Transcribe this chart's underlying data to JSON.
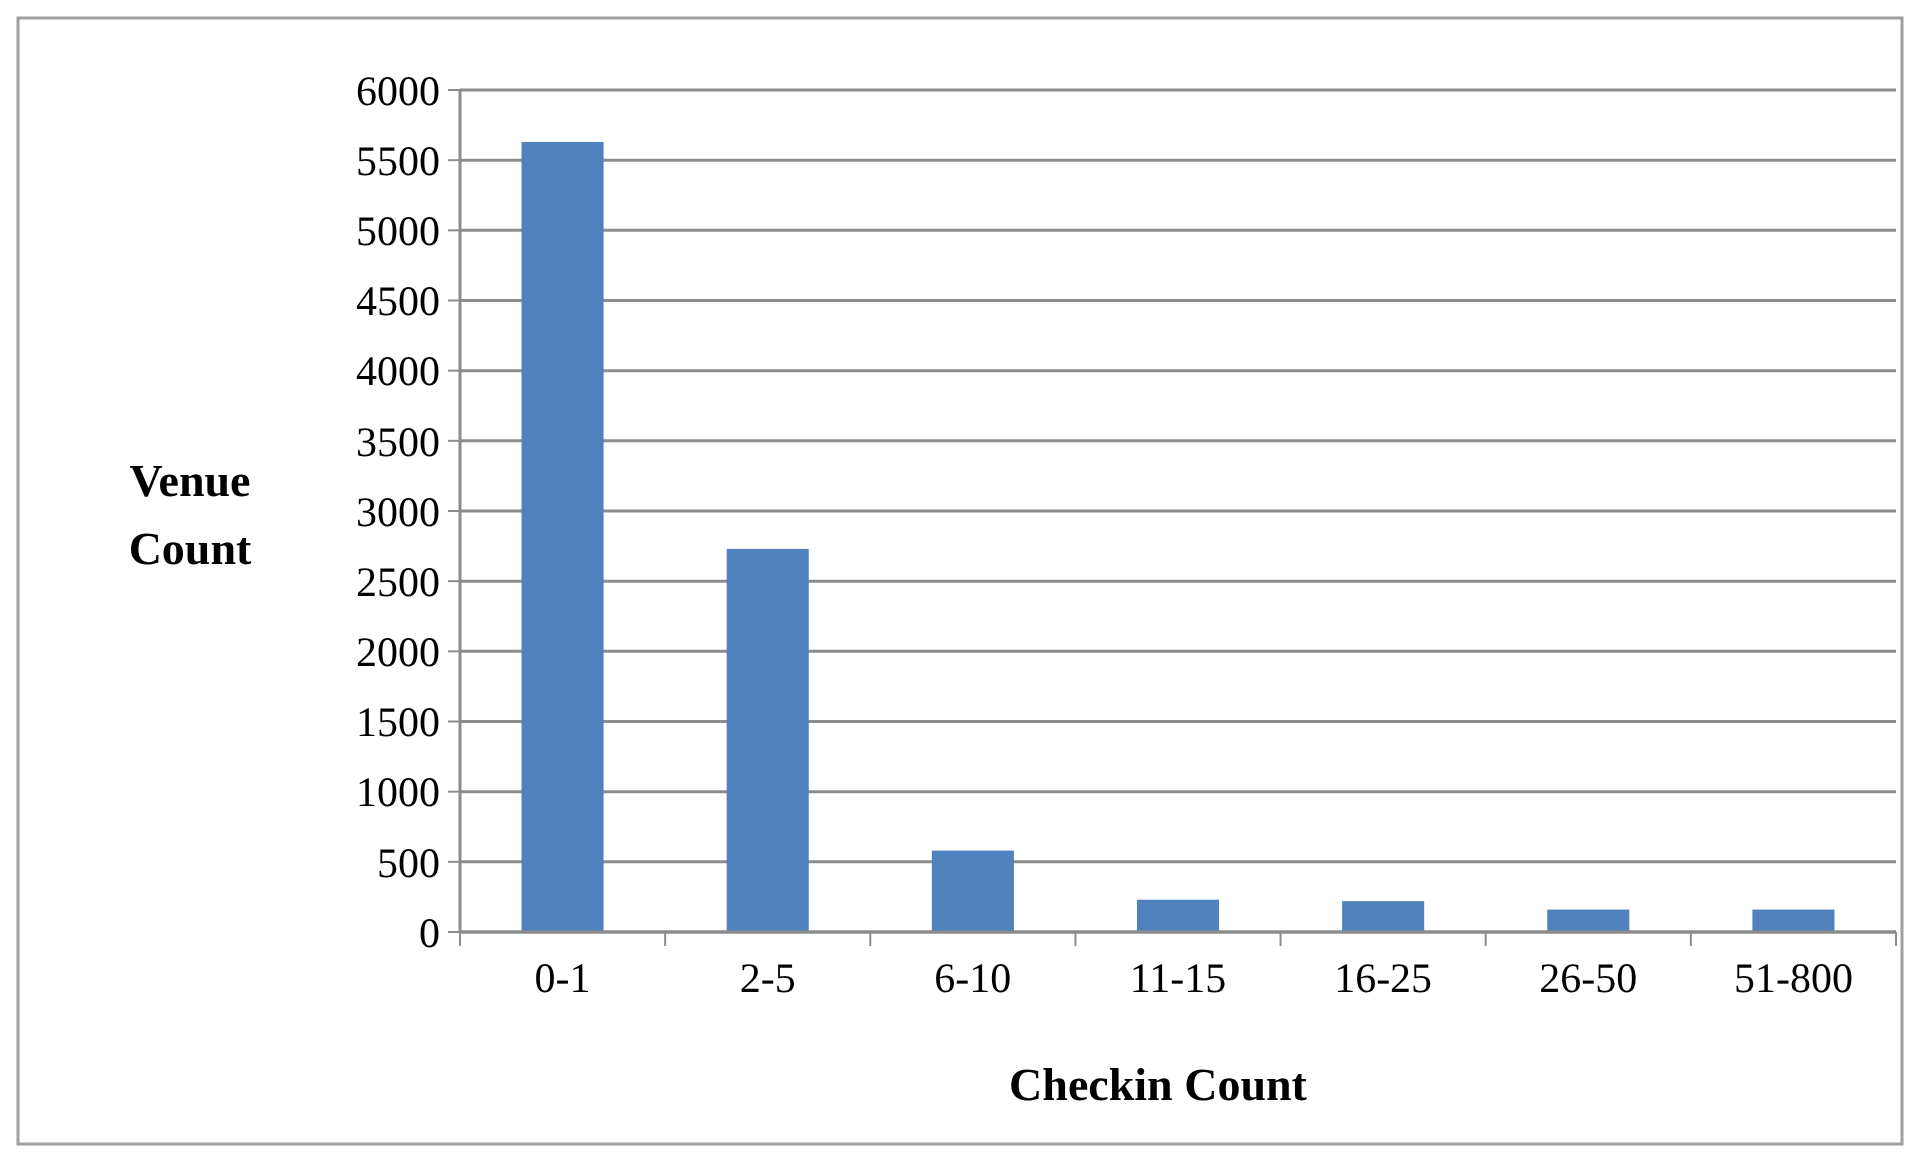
{
  "chart_data": {
    "type": "bar",
    "xlabel": "Checkin Count",
    "ylabel": "Venue Count",
    "categories": [
      "0-1",
      "2-5",
      "6-10",
      "11-15",
      "16-25",
      "26-50",
      "51-800"
    ],
    "values": [
      5630,
      2730,
      580,
      230,
      220,
      160,
      160
    ],
    "color": "#4f81bd",
    "ylim": [
      0,
      6000
    ],
    "yticks": [
      0,
      500,
      1000,
      1500,
      2000,
      2500,
      3000,
      3500,
      4000,
      4500,
      5000,
      5500,
      6000
    ],
    "grid": "y"
  }
}
